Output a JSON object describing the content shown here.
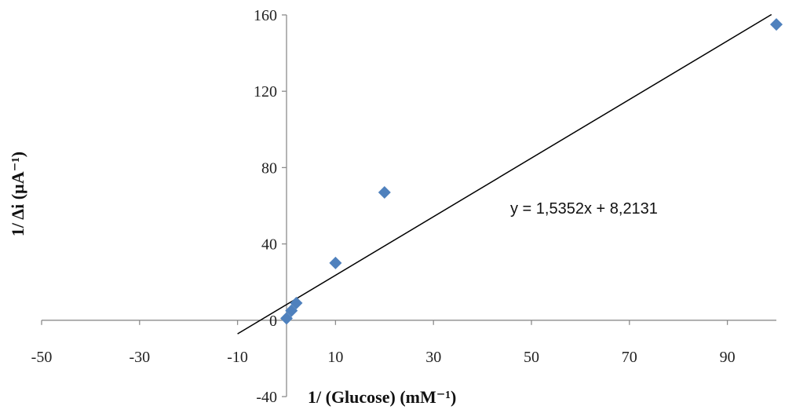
{
  "chart_data": {
    "type": "scatter",
    "title": "",
    "xlabel": "1/ (Glucose) (mM⁻¹)",
    "ylabel": "1/ Δi  (µA⁻¹)",
    "xlim": [
      -50,
      100
    ],
    "ylim": [
      -40,
      160
    ],
    "x_ticks": [
      -50,
      -30,
      -10,
      10,
      30,
      50,
      70,
      90
    ],
    "y_ticks": [
      -40,
      0,
      40,
      80,
      120,
      160
    ],
    "x_tick_labels": [
      "-50",
      "-30",
      "-10",
      "10",
      "30",
      "50",
      "70",
      "90"
    ],
    "y_tick_labels": [
      "-40",
      "0",
      "40",
      "80",
      "120",
      "160"
    ],
    "grid": false,
    "legend": "none",
    "series": [
      {
        "color": "#4f81bd",
        "marker": "diamond",
        "points": [
          {
            "x": 0,
            "y": 1
          },
          {
            "x": 1,
            "y": 5
          },
          {
            "x": 2,
            "y": 9
          },
          {
            "x": 10,
            "y": 30
          },
          {
            "x": 20,
            "y": 67
          },
          {
            "x": 100,
            "y": 155
          }
        ]
      }
    ],
    "trendline": {
      "slope": 1.5352,
      "intercept": 8.2131,
      "x_range": [
        -10,
        99
      ],
      "color": "#000000",
      "equation_label": "y = 1,5352x + 8,2131"
    }
  }
}
